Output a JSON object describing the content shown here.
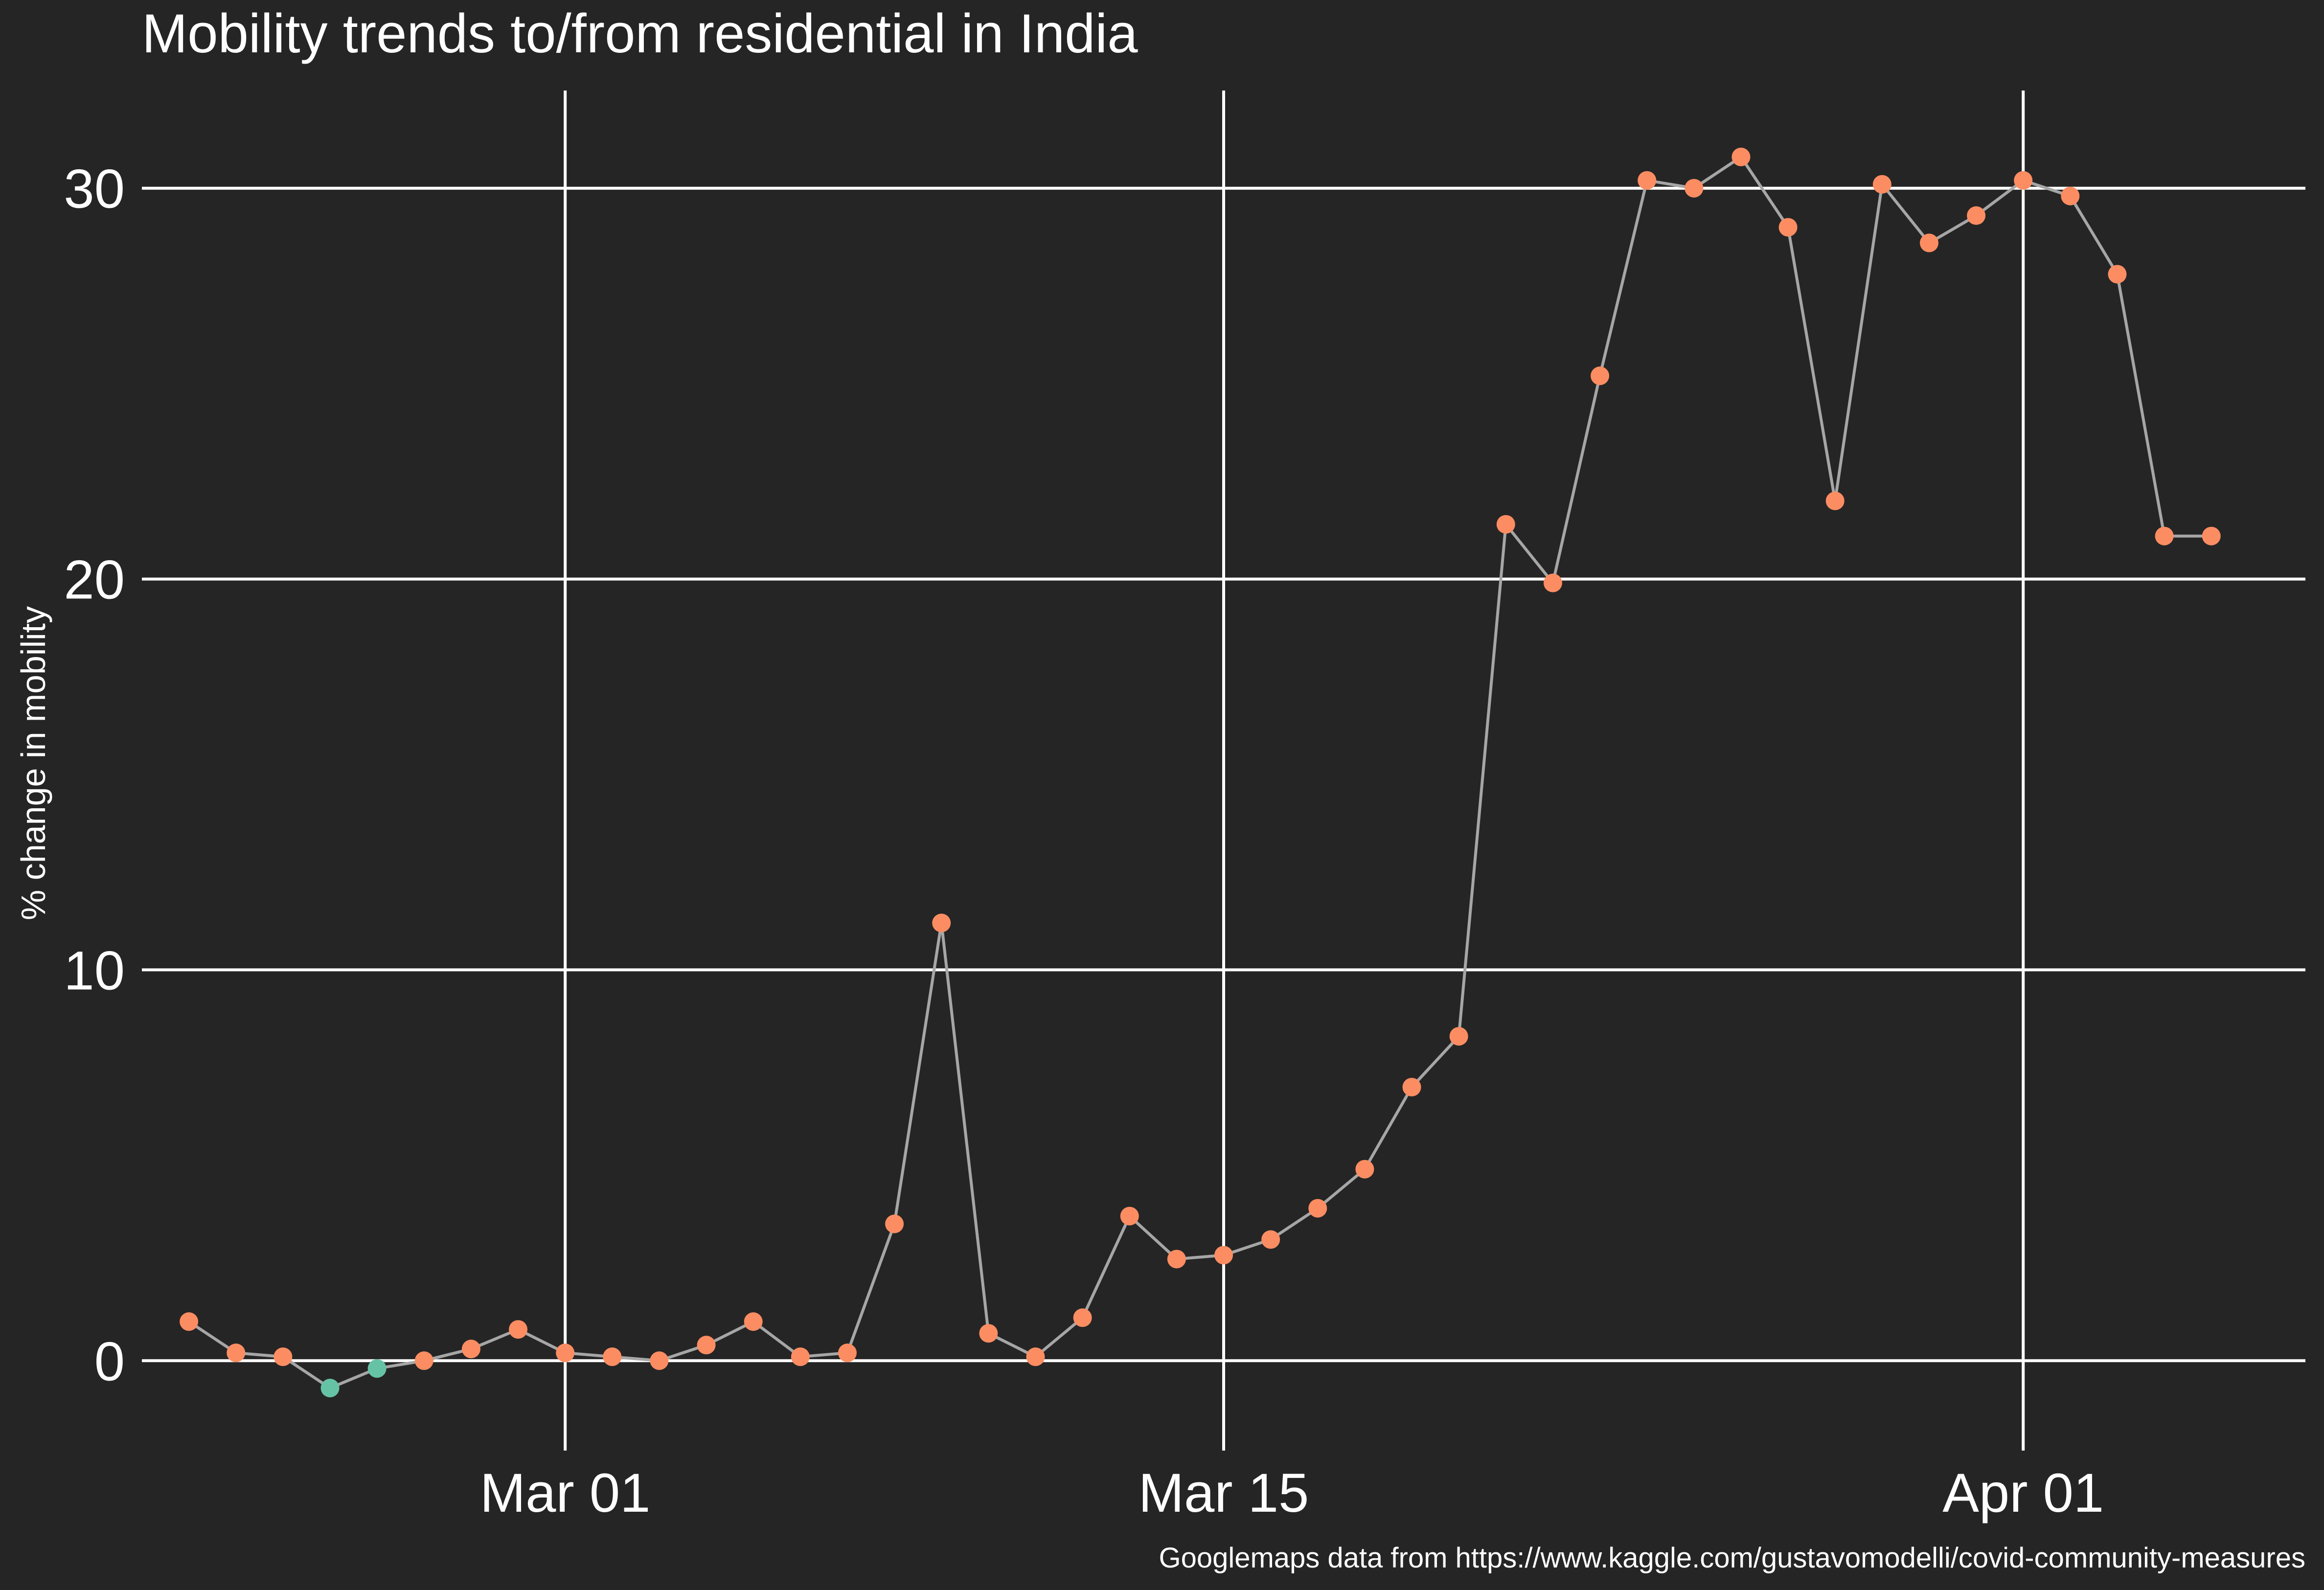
{
  "chart_data": {
    "type": "line",
    "title": "Mobility trends to/from residential in India",
    "xlabel": "",
    "ylabel": "% change in mobility",
    "caption": "Googlemaps data from https://www.kaggle.com/gustavomodelli/covid-community-measures",
    "x_ticks": [
      {
        "date": "2020-03-01",
        "label": "Mar 01"
      },
      {
        "date": "2020-03-15",
        "label": "Mar 15"
      },
      {
        "date": "2020-04-01",
        "label": "Apr 01"
      }
    ],
    "y_ticks": [
      0,
      10,
      20,
      30
    ],
    "xlim": [
      "2020-02-21",
      "2020-04-07"
    ],
    "ylim": [
      -2.3,
      32.5
    ],
    "grid": true,
    "legend": "none",
    "colors": {
      "background": "#252525",
      "grid": "#ffffff",
      "line": "#a6a6a6",
      "positive_point": "#fc8d62",
      "negative_point": "#66c2a5",
      "text": "#ffffff"
    },
    "series": [
      {
        "x": [
          "2020-02-22",
          "2020-02-23",
          "2020-02-24",
          "2020-02-25",
          "2020-02-26",
          "2020-02-27",
          "2020-02-28",
          "2020-02-29",
          "2020-03-01",
          "2020-03-02",
          "2020-03-03",
          "2020-03-04",
          "2020-03-05",
          "2020-03-06",
          "2020-03-07",
          "2020-03-08",
          "2020-03-09",
          "2020-03-10",
          "2020-03-11",
          "2020-03-12",
          "2020-03-13",
          "2020-03-14",
          "2020-03-15",
          "2020-03-16",
          "2020-03-17",
          "2020-03-18",
          "2020-03-19",
          "2020-03-20",
          "2020-03-21",
          "2020-03-22",
          "2020-03-23",
          "2020-03-24",
          "2020-03-25",
          "2020-03-26",
          "2020-03-27",
          "2020-03-28",
          "2020-03-29",
          "2020-03-30",
          "2020-03-31",
          "2020-04-01",
          "2020-04-02",
          "2020-04-03",
          "2020-04-04",
          "2020-04-05"
        ],
        "y": [
          1.0,
          0.2,
          0.1,
          -0.7,
          -0.2,
          0.0,
          0.3,
          0.8,
          0.2,
          0.1,
          0.0,
          0.4,
          1.0,
          0.1,
          0.2,
          3.5,
          11.2,
          0.7,
          0.1,
          1.1,
          3.7,
          2.6,
          2.7,
          3.1,
          3.9,
          4.9,
          7.0,
          8.3,
          21.4,
          19.9,
          25.2,
          30.2,
          30.0,
          30.8,
          29.0,
          22.0,
          30.1,
          28.6,
          29.3,
          30.2,
          29.8,
          27.8,
          21.1,
          21.1
        ]
      }
    ]
  }
}
